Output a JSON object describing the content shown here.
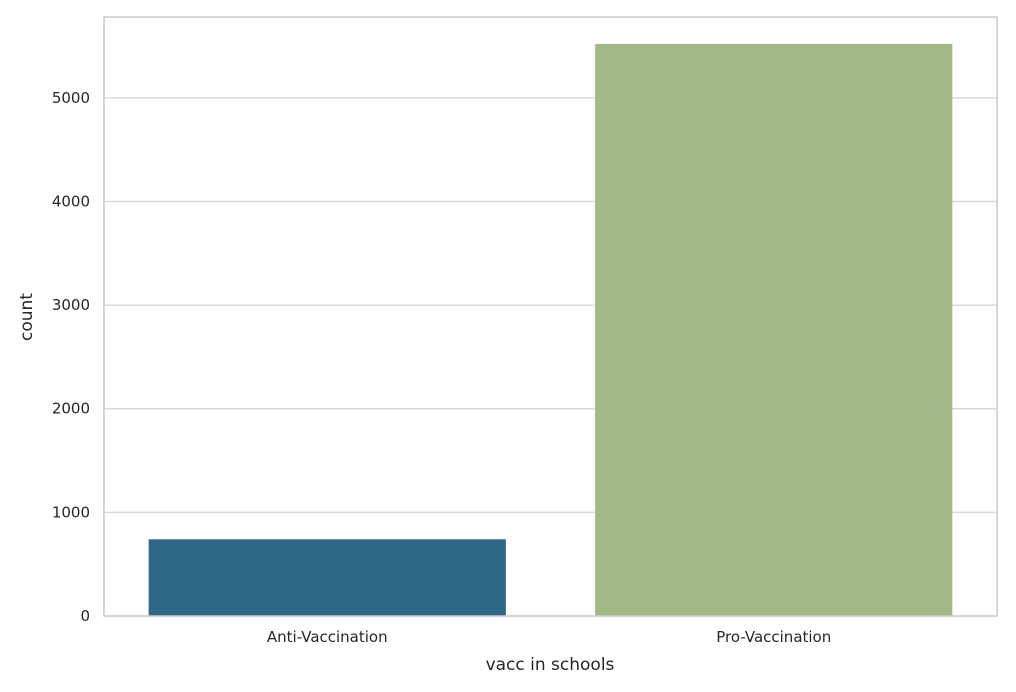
{
  "chart_data": {
    "type": "bar",
    "categories": [
      "Anti-Vaccination",
      "Pro-Vaccination"
    ],
    "values": [
      740,
      5520
    ],
    "xlabel": "vacc in schools",
    "ylabel": "count",
    "ylim": [
      0,
      5780
    ],
    "yticks": [
      0,
      1000,
      2000,
      3000,
      4000,
      5000
    ],
    "ytick_labels": [
      "0",
      "1000",
      "2000",
      "3000",
      "4000",
      "5000"
    ],
    "grid": "horizontal",
    "colors": [
      "#2e6887",
      "#a2b886"
    ]
  }
}
